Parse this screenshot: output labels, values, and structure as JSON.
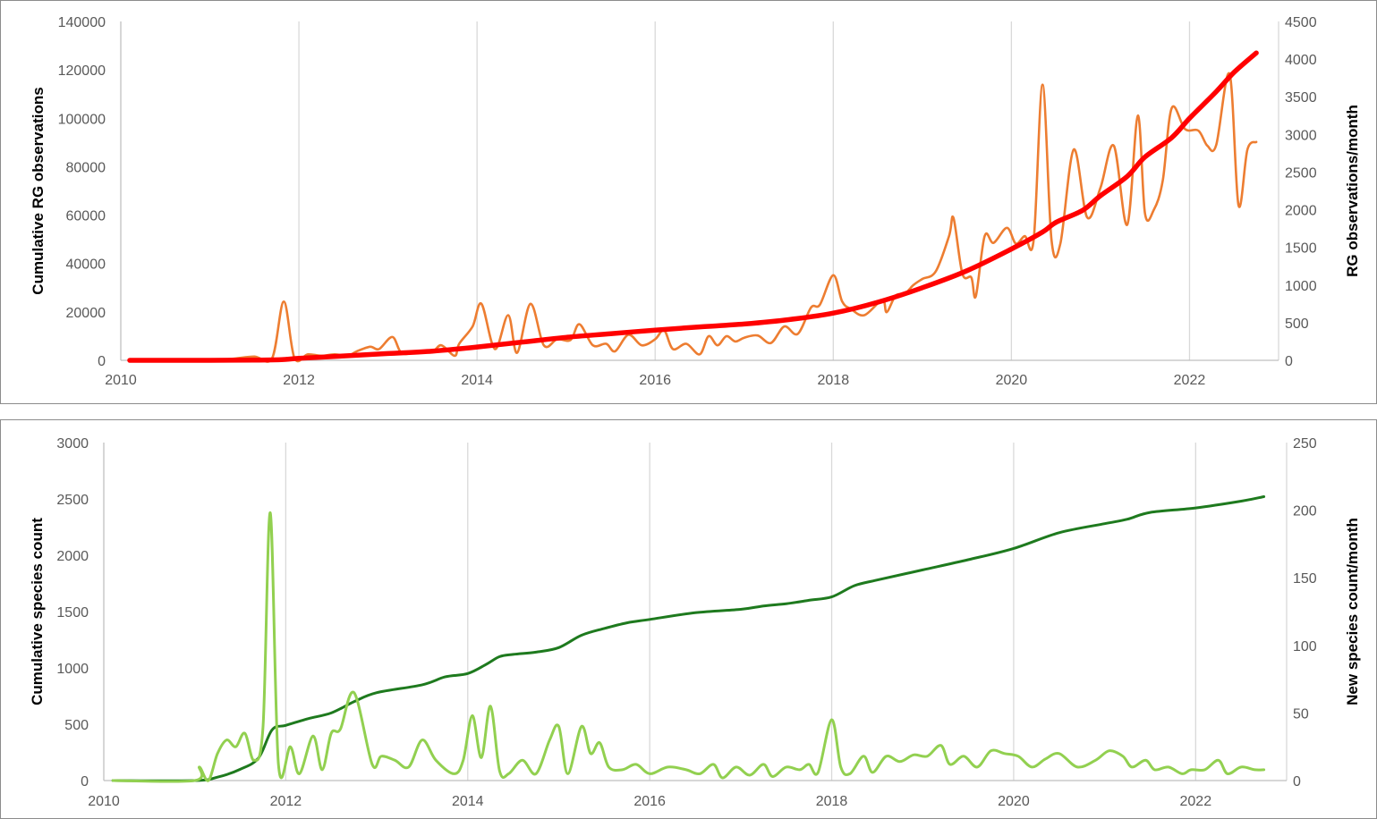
{
  "chart_data": [
    {
      "type": "line",
      "x_ticks": [
        "2010",
        "2012",
        "2014",
        "2016",
        "2018",
        "2020",
        "2022"
      ],
      "xlim": [
        2010,
        2023
      ],
      "ylabel_left": "Cumulative RG observations",
      "ylabel_right": "RG observations/month",
      "ylim_left": [
        0,
        140000
      ],
      "ylim_right": [
        0,
        4500
      ],
      "y_ticks_left": [
        "0",
        "20000",
        "40000",
        "60000",
        "80000",
        "100000",
        "120000",
        "140000"
      ],
      "y_ticks_right": [
        "0",
        "500",
        "1000",
        "1500",
        "2000",
        "2500",
        "3000",
        "3500",
        "4000",
        "4500"
      ],
      "grid": "vertical",
      "series": [
        {
          "axis": "left",
          "color": "#ff0000",
          "x": [
            2010.1,
            2011.0,
            2011.5,
            2011.8,
            2012.0,
            2012.5,
            2013.0,
            2013.5,
            2014.0,
            2014.5,
            2015.0,
            2015.5,
            2016.0,
            2016.5,
            2017.0,
            2017.5,
            2018.0,
            2018.5,
            2019.0,
            2019.5,
            2020.0,
            2020.35,
            2020.5,
            2020.8,
            2021.0,
            2021.3,
            2021.5,
            2021.8,
            2022.0,
            2022.3,
            2022.5,
            2022.75
          ],
          "values": [
            0,
            0,
            100,
            300,
            800,
            1800,
            2800,
            3800,
            5500,
            7500,
            9500,
            11000,
            12500,
            13800,
            15000,
            16800,
            19500,
            24000,
            30000,
            37000,
            46000,
            53000,
            57000,
            62000,
            68000,
            76000,
            84000,
            92000,
            100000,
            111000,
            119000,
            127000
          ]
        },
        {
          "axis": "right",
          "color": "#ed7d31",
          "x": [
            2010.1,
            2011.0,
            2011.25,
            2011.5,
            2011.7,
            2011.83,
            2011.95,
            2012.1,
            2012.25,
            2012.4,
            2012.55,
            2012.65,
            2012.8,
            2012.9,
            2013.05,
            2013.15,
            2013.3,
            2013.5,
            2013.6,
            2013.75,
            2013.8,
            2013.95,
            2014.05,
            2014.2,
            2014.35,
            2014.45,
            2014.6,
            2014.75,
            2014.9,
            2015.05,
            2015.15,
            2015.3,
            2015.45,
            2015.55,
            2015.7,
            2015.85,
            2016.0,
            2016.1,
            2016.2,
            2016.35,
            2016.5,
            2016.6,
            2016.7,
            2016.8,
            2016.9,
            2017.0,
            2017.15,
            2017.3,
            2017.45,
            2017.6,
            2017.75,
            2017.85,
            2018.0,
            2018.1,
            2018.2,
            2018.35,
            2018.55,
            2018.6,
            2018.7,
            2018.8,
            2018.9,
            2019.0,
            2019.15,
            2019.3,
            2019.35,
            2019.45,
            2019.55,
            2019.6,
            2019.7,
            2019.8,
            2019.95,
            2020.05,
            2020.15,
            2020.25,
            2020.35,
            2020.45,
            2020.55,
            2020.7,
            2020.85,
            2021.0,
            2021.15,
            2021.3,
            2021.42,
            2021.5,
            2021.6,
            2021.7,
            2021.8,
            2021.95,
            2022.1,
            2022.2,
            2022.3,
            2022.45,
            2022.55,
            2022.65,
            2022.75
          ],
          "values": [
            0,
            0,
            20,
            50,
            30,
            780,
            30,
            80,
            60,
            80,
            60,
            120,
            180,
            150,
            310,
            100,
            100,
            120,
            200,
            60,
            220,
            450,
            750,
            150,
            600,
            100,
            750,
            200,
            280,
            270,
            480,
            200,
            220,
            120,
            340,
            200,
            280,
            400,
            150,
            220,
            80,
            320,
            200,
            320,
            250,
            300,
            330,
            230,
            450,
            350,
            700,
            740,
            1130,
            780,
            680,
            600,
            800,
            640,
            860,
            880,
            1000,
            1080,
            1180,
            1650,
            1890,
            1150,
            1100,
            850,
            1650,
            1560,
            1760,
            1550,
            1650,
            1600,
            3660,
            1600,
            1550,
            2800,
            1900,
            2290,
            2850,
            1800,
            3250,
            1950,
            2000,
            2390,
            3350,
            3070,
            3050,
            2850,
            2860,
            3800,
            2060,
            2800,
            2900
          ]
        }
      ]
    },
    {
      "type": "line",
      "x_ticks": [
        "2010",
        "2012",
        "2014",
        "2016",
        "2018",
        "2020",
        "2022"
      ],
      "xlim": [
        2010,
        2023
      ],
      "ylabel_left": "Cumulative species count",
      "ylabel_right": "New species count/month",
      "ylim_left": [
        0,
        3000
      ],
      "ylim_right": [
        0,
        250
      ],
      "y_ticks_left": [
        "0",
        "500",
        "1000",
        "1500",
        "2000",
        "2500",
        "3000"
      ],
      "y_ticks_right": [
        "0",
        "50",
        "100",
        "150",
        "200",
        "250"
      ],
      "grid": "vertical",
      "series": [
        {
          "axis": "left",
          "color": "#1e7a1e",
          "x": [
            2010.1,
            2011.0,
            2011.25,
            2011.5,
            2011.7,
            2011.85,
            2012.0,
            2012.25,
            2012.5,
            2012.75,
            2013.0,
            2013.5,
            2013.75,
            2014.0,
            2014.2,
            2014.35,
            2014.5,
            2014.75,
            2015.0,
            2015.25,
            2015.5,
            2015.75,
            2016.0,
            2016.5,
            2017.0,
            2017.25,
            2017.5,
            2017.75,
            2018.0,
            2018.25,
            2018.5,
            2019.0,
            2019.5,
            2020.0,
            2020.5,
            2021.0,
            2021.25,
            2021.5,
            2022.0,
            2022.5,
            2022.75
          ],
          "values": [
            0,
            0,
            30,
            100,
            200,
            450,
            490,
            550,
            600,
            700,
            780,
            850,
            920,
            950,
            1030,
            1100,
            1120,
            1140,
            1180,
            1290,
            1350,
            1400,
            1430,
            1490,
            1520,
            1550,
            1570,
            1600,
            1630,
            1730,
            1780,
            1870,
            1960,
            2060,
            2200,
            2280,
            2320,
            2380,
            2420,
            2480,
            2520
          ]
        },
        {
          "axis": "right",
          "color": "#92d050",
          "x": [
            2010.1,
            2011.0,
            2011.05,
            2011.15,
            2011.25,
            2011.35,
            2011.45,
            2011.55,
            2011.65,
            2011.75,
            2011.83,
            2011.92,
            2012.05,
            2012.15,
            2012.3,
            2012.4,
            2012.5,
            2012.6,
            2012.75,
            2012.95,
            2013.05,
            2013.2,
            2013.35,
            2013.5,
            2013.65,
            2013.85,
            2013.95,
            2014.05,
            2014.15,
            2014.25,
            2014.35,
            2014.45,
            2014.6,
            2014.75,
            2014.9,
            2015.0,
            2015.1,
            2015.25,
            2015.35,
            2015.45,
            2015.55,
            2015.7,
            2015.85,
            2016.0,
            2016.2,
            2016.4,
            2016.55,
            2016.7,
            2016.8,
            2016.95,
            2017.1,
            2017.25,
            2017.35,
            2017.5,
            2017.65,
            2017.75,
            2017.85,
            2018.0,
            2018.1,
            2018.2,
            2018.35,
            2018.45,
            2018.6,
            2018.75,
            2018.9,
            2019.05,
            2019.2,
            2019.3,
            2019.45,
            2019.6,
            2019.75,
            2019.9,
            2020.05,
            2020.2,
            2020.35,
            2020.5,
            2020.7,
            2020.9,
            2021.05,
            2021.2,
            2021.3,
            2021.45,
            2021.55,
            2021.7,
            2021.85,
            2021.95,
            2022.1,
            2022.25,
            2022.35,
            2022.5,
            2022.65,
            2022.75
          ],
          "values": [
            0,
            0,
            10,
            0,
            20,
            30,
            25,
            35,
            15,
            40,
            198,
            12,
            25,
            5,
            33,
            8,
            35,
            38,
            65,
            12,
            18,
            15,
            10,
            30,
            15,
            5,
            15,
            48,
            17,
            55,
            7,
            5,
            15,
            5,
            30,
            40,
            5,
            40,
            20,
            28,
            10,
            8,
            12,
            5,
            10,
            8,
            5,
            12,
            2,
            10,
            4,
            12,
            3,
            10,
            8,
            12,
            6,
            45,
            10,
            5,
            18,
            6,
            18,
            14,
            19,
            18,
            26,
            12,
            18,
            10,
            22,
            20,
            18,
            10,
            16,
            20,
            10,
            15,
            22,
            18,
            10,
            15,
            8,
            10,
            5,
            8,
            8,
            15,
            5,
            10,
            8,
            8
          ]
        }
      ]
    }
  ]
}
